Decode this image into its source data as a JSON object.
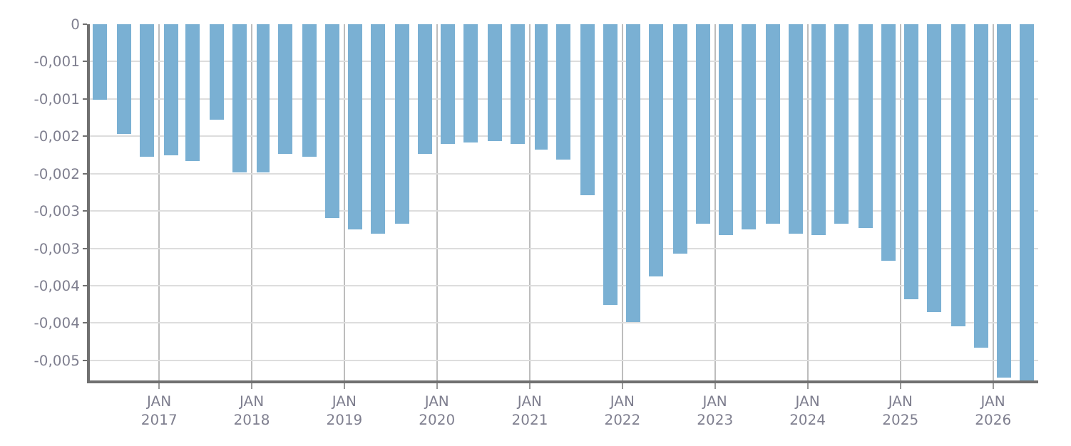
{
  "chart_data": {
    "type": "bar",
    "x": [
      "2016-05-15",
      "2016-08-15",
      "2016-11-15",
      "2017-02-15",
      "2017-05-15",
      "2017-08-15",
      "2017-11-15",
      "2018-02-15",
      "2018-05-15",
      "2018-08-15",
      "2018-11-15",
      "2019-02-15",
      "2019-05-15",
      "2019-08-15",
      "2019-11-15",
      "2020-02-15",
      "2020-05-15",
      "2020-08-15",
      "2020-11-15",
      "2021-02-15",
      "2021-05-15",
      "2021-08-15",
      "2021-11-15",
      "2022-02-15",
      "2022-05-15",
      "2022-08-15",
      "2022-11-15",
      "2023-02-15",
      "2023-05-15",
      "2023-08-15",
      "2023-11-15",
      "2024-02-15",
      "2024-05-15",
      "2024-08-15",
      "2024-11-15",
      "2025-02-15",
      "2025-05-15",
      "2025-08-15",
      "2025-11-15",
      "2026-02-15",
      "2026-05-15"
    ],
    "values": [
      -0.00101,
      -0.00146,
      -0.00178,
      -0.00176,
      -0.00183,
      -0.00128,
      -0.00198,
      -0.00198,
      -0.00173,
      -0.00178,
      -0.00259,
      -0.00274,
      -0.0028,
      -0.00267,
      -0.00173,
      -0.0016,
      -0.00158,
      -0.00157,
      -0.0016,
      -0.00167,
      -0.00182,
      -0.00228,
      -0.00376,
      -0.00399,
      -0.00337,
      -0.00307,
      -0.00267,
      -0.00282,
      -0.00274,
      -0.00267,
      -0.0028,
      -0.00283,
      -0.00267,
      -0.00273,
      -0.00316,
      -0.00369,
      -0.00385,
      -0.00405,
      -0.00433,
      -0.00473,
      -0.00476
    ],
    "color": "#7ab0d3",
    "xlim": [
      "2016-04-03",
      "2026-06-28"
    ],
    "xticks": [
      {
        "value": "2017-01-01",
        "label": "JAN\n2017"
      },
      {
        "value": "2018-01-01",
        "label": "JAN\n2018"
      },
      {
        "value": "2019-01-01",
        "label": "JAN\n2019"
      },
      {
        "value": "2020-01-01",
        "label": "JAN\n2020"
      },
      {
        "value": "2021-01-01",
        "label": "JAN\n2021"
      },
      {
        "value": "2022-01-01",
        "label": "JAN\n2022"
      },
      {
        "value": "2023-01-01",
        "label": "JAN\n2023"
      },
      {
        "value": "2024-01-01",
        "label": "JAN\n2024"
      },
      {
        "value": "2025-01-01",
        "label": "JAN\n2025"
      },
      {
        "value": "2026-01-01",
        "label": "JAN\n2026"
      }
    ],
    "ylim": [
      -0.004768,
      0
    ],
    "yticks": [
      0,
      {
        "value": -0.0005,
        "label": "-0,001"
      },
      {
        "value": -0.001,
        "label": "-0,001"
      },
      {
        "value": -0.0015,
        "label": "-0,002"
      },
      {
        "value": -0.002,
        "label": "-0,002"
      },
      {
        "value": -0.0025,
        "label": "-0,003"
      },
      {
        "value": -0.003,
        "label": "-0,003"
      },
      {
        "value": -0.0035,
        "label": "-0,004"
      },
      {
        "value": -0.004,
        "label": "-0,004"
      },
      {
        "value": -0.0045,
        "label": "-0,005"
      }
    ],
    "grid": true
  }
}
